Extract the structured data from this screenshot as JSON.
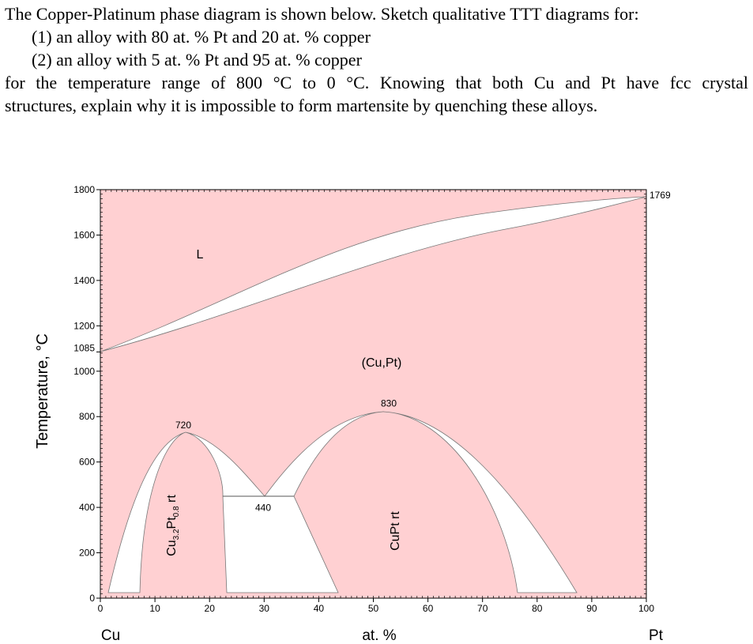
{
  "problem": {
    "intro": "The Copper-Platinum phase diagram is shown below. Sketch qualitative TTT diagrams for:",
    "items": [
      "(1) an alloy with 80 at. % Pt and 20 at. % copper",
      "(2) an alloy with 5 at. % Pt and 95 at. % copper"
    ],
    "body": [
      "for the temperature range of 800 °C to 0 °C. Knowing that both Cu and Pt have fcc crystal",
      "structures, explain why it is impossible to form martensite by quenching these alloys."
    ]
  },
  "figure": {
    "y_axis_label": "Temperature, °C",
    "x_axis_label": "at. %",
    "left_element": "Cu",
    "right_element": "Pt",
    "xticks": [
      0,
      10,
      20,
      30,
      40,
      50,
      60,
      70,
      80,
      90,
      100
    ],
    "yticks": [
      0,
      200,
      400,
      600,
      800,
      1000,
      1200,
      1400,
      1600,
      1800
    ],
    "cu_melting_point": 1085,
    "pt_melting_point": 1769,
    "liquid_label": "L",
    "solid_solution_label": "(Cu,Pt)",
    "cupt_max": 830,
    "cu3pt_max": 720,
    "eutectoid": 440,
    "cu3pt_phase": {
      "base": "Cu",
      "sub1": "3.2",
      "mid": "Pt",
      "sub2": "0.8",
      "tail": " rt"
    },
    "cupt_phase": "CuPt rt"
  }
}
